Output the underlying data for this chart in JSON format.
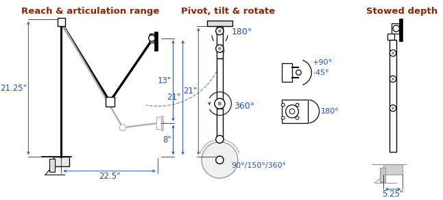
{
  "title_left": "Reach & articulation range",
  "title_mid": "Pivot, tilt & rotate",
  "title_right": "Stowed depth",
  "title_color": "#8B2500",
  "dim_color": "#1E4FBF",
  "line_color": "#000000",
  "gray_color": "#b0b0b0",
  "bg_color": "#ffffff",
  "dims_left": {
    "height": "21.25\"",
    "reach": "22.5\"",
    "upper": "13\"",
    "mid": "21\"",
    "lower": "8\""
  },
  "dims_mid": {
    "tilt_top": "180°",
    "rotate_mid": "360°",
    "rotate_bot": "90°/150°/360°",
    "tilt_plus": "+90°",
    "tilt_minus": "-45°",
    "pivot": "180°",
    "height": "21\""
  },
  "dims_right": {
    "depth": "5.25\""
  }
}
